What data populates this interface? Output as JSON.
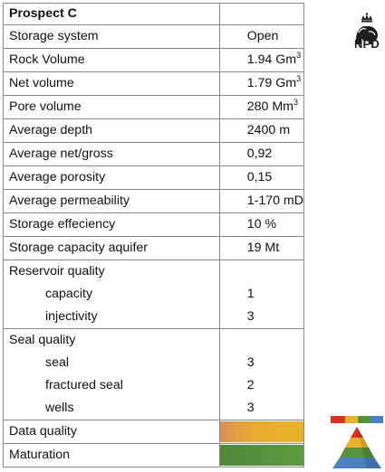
{
  "table": {
    "title": "Prospect C",
    "rows": [
      {
        "label": "Storage system",
        "value": "Open"
      },
      {
        "label": "Rock Volume",
        "value": "1.94 Gm",
        "sup": "3"
      },
      {
        "label": "Net volume",
        "value": "1.79 Gm",
        "sup": "3"
      },
      {
        "label": "Pore volume",
        "value": "280 Mm",
        "sup": "3"
      },
      {
        "label": "Average depth",
        "value": "2400 m"
      },
      {
        "label": "Average net/gross",
        "value": "0,92"
      },
      {
        "label": "Average porosity",
        "value": "0,15"
      },
      {
        "label": "Average permeability",
        "value": "1-170 mD"
      },
      {
        "label": "Storage effeciency",
        "value": "10 %"
      },
      {
        "label": "Storage capacity aquifer",
        "value": "19 Mt"
      }
    ],
    "reservoir_quality": {
      "label": "Reservoir quality",
      "items": [
        {
          "label": "capacity",
          "value": "1"
        },
        {
          "label": "injectivity",
          "value": "3"
        }
      ]
    },
    "seal_quality": {
      "label": "Seal quality",
      "items": [
        {
          "label": "seal",
          "value": "3"
        },
        {
          "label": "fractured seal",
          "value": "2"
        },
        {
          "label": "wells",
          "value": "3"
        }
      ]
    },
    "data_quality": {
      "label": "Data quality",
      "bar_color": "#e6ad2c"
    },
    "maturation": {
      "label": "Maturation",
      "bar_color": "#56923c"
    }
  },
  "logo": {
    "text": "NPD"
  },
  "legend": {
    "strip_colors": [
      "#d9312a",
      "#e8b22a",
      "#56923c",
      "#4a7fc0"
    ],
    "pyramid_colors": [
      "#d9312a",
      "#e8b22a",
      "#56923c",
      "#4a7fc0"
    ]
  }
}
